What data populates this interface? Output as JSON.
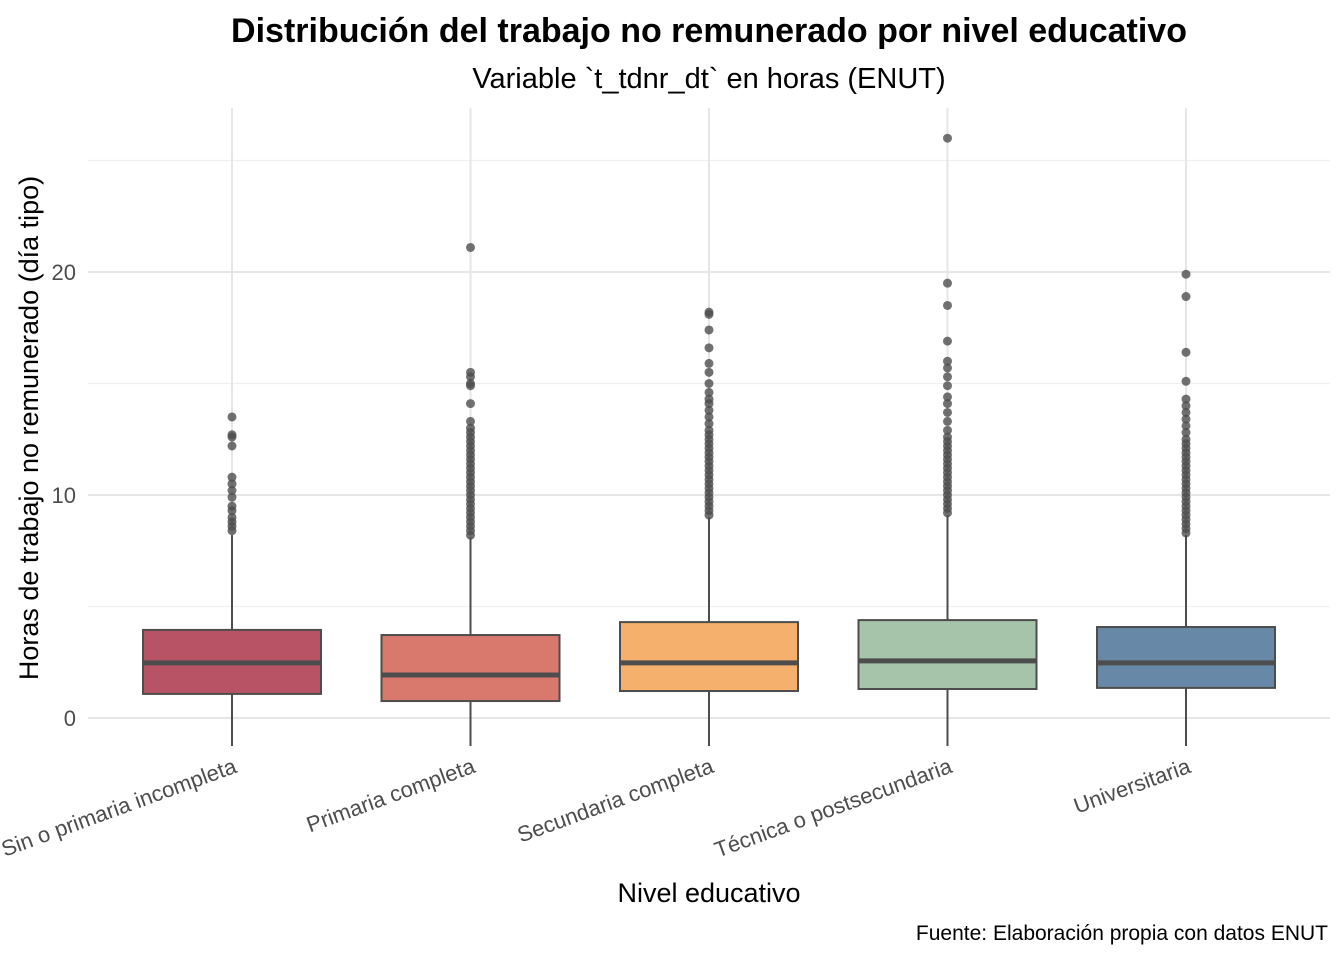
{
  "chart_data": {
    "type": "boxplot",
    "title": "Distribución del trabajo no remunerado por nivel educativo",
    "subtitle": "Variable `t_tdnr_dt` en horas (ENUT)",
    "xlabel": "Nivel educativo",
    "ylabel": "Horas de trabajo no remunerado (día tipo)",
    "caption": "Fuente: Elaboración propia con datos ENUT",
    "ylim": [
      -1,
      27.5
    ],
    "yticks": [
      0,
      10,
      20
    ],
    "ytick_labels": [
      "0",
      "10",
      "20"
    ],
    "grid": true,
    "categories": [
      "Sin o primaria incompleta",
      "Primaria completa",
      "Secundaria completa",
      "Técnica o postsecundaria",
      "Universitaria"
    ],
    "colors": [
      "#b85366",
      "#d9796d",
      "#f5b06e",
      "#a5c4a9",
      "#6788a6"
    ],
    "series": [
      {
        "name": "Sin o primaria incompleta",
        "whisker_low": 0,
        "q1": 1.08,
        "median": 2.47,
        "q3": 3.95,
        "whisker_high": 8.2,
        "outliers": [
          8.4,
          8.6,
          8.8,
          9.0,
          9.3,
          9.5,
          9.9,
          10.2,
          10.5,
          10.8,
          12.2,
          12.6,
          12.7,
          13.5
        ]
      },
      {
        "name": "Primaria completa",
        "whisker_low": 0,
        "q1": 0.76,
        "median": 1.93,
        "q3": 3.72,
        "whisker_high": 8.1,
        "outliers": [
          8.2,
          8.4,
          8.6,
          8.8,
          9.0,
          9.2,
          9.4,
          9.6,
          9.8,
          10.0,
          10.2,
          10.4,
          10.6,
          10.8,
          11.0,
          11.2,
          11.4,
          11.6,
          11.8,
          12.0,
          12.2,
          12.4,
          12.6,
          12.8,
          13.0,
          13.3,
          14.1,
          14.9,
          15.0,
          15.3,
          15.5,
          21.1
        ]
      },
      {
        "name": "Secundaria completa",
        "whisker_low": 0,
        "q1": 1.21,
        "median": 2.47,
        "q3": 4.3,
        "whisker_high": 9.0,
        "outliers": [
          9.1,
          9.3,
          9.5,
          9.7,
          9.9,
          10.1,
          10.3,
          10.5,
          10.7,
          10.9,
          11.1,
          11.3,
          11.5,
          11.7,
          11.9,
          12.1,
          12.3,
          12.5,
          12.7,
          12.9,
          13.2,
          13.5,
          13.8,
          14.1,
          14.3,
          14.6,
          15.0,
          15.5,
          15.9,
          16.6,
          17.4,
          18.1,
          18.2
        ]
      },
      {
        "name": "Técnica o postsecundaria",
        "whisker_low": 0,
        "q1": 1.3,
        "median": 2.56,
        "q3": 4.39,
        "whisker_high": 9.1,
        "outliers": [
          9.2,
          9.4,
          9.6,
          9.8,
          10.0,
          10.2,
          10.4,
          10.6,
          10.8,
          11.0,
          11.2,
          11.4,
          11.6,
          11.8,
          12.0,
          12.2,
          12.4,
          12.6,
          12.9,
          13.3,
          13.7,
          14.1,
          14.4,
          14.9,
          15.3,
          15.7,
          16.0,
          16.9,
          18.5,
          19.5,
          26.0
        ]
      },
      {
        "name": "Universitaria",
        "whisker_low": 0,
        "q1": 1.35,
        "median": 2.47,
        "q3": 4.08,
        "whisker_high": 8.2,
        "outliers": [
          8.3,
          8.5,
          8.7,
          8.9,
          9.1,
          9.3,
          9.5,
          9.7,
          9.9,
          10.1,
          10.3,
          10.5,
          10.7,
          10.9,
          11.1,
          11.3,
          11.5,
          11.7,
          11.9,
          12.1,
          12.3,
          12.5,
          12.8,
          13.1,
          13.4,
          13.7,
          14.0,
          14.3,
          15.1,
          16.4,
          18.9,
          19.9
        ]
      }
    ]
  }
}
